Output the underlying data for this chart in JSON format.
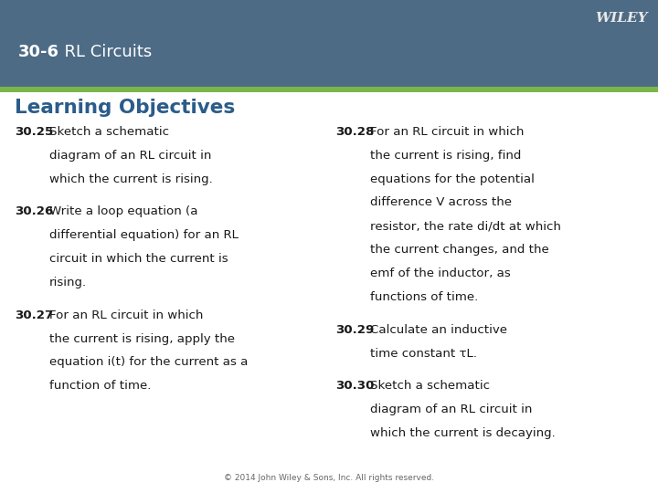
{
  "header_bg_color": "#4d6b85",
  "header_text_color": "#ffffff",
  "header_label": "30-6",
  "header_title": "  RL Circuits",
  "wiley_text": "WILEY",
  "wiley_color": "#e8e8e8",
  "accent_bar_color": "#7ab648",
  "body_bg_color": "#ffffff",
  "section_title": "Learning Objectives",
  "section_title_color": "#2b5c8a",
  "footer_text": "© 2014 John Wiley & Sons, Inc. All rights reserved.",
  "footer_color": "#666666",
  "text_color": "#1a1a1a",
  "left_items": [
    {
      "num": "30.25",
      "lines": [
        "Sketch a schematic",
        "diagram of an RL circuit in",
        "which the current is rising."
      ]
    },
    {
      "num": "30.26",
      "lines": [
        "Write a loop equation (a",
        "differential equation) for an RL",
        "circuit in which the current is",
        "rising."
      ]
    },
    {
      "num": "30.27",
      "lines": [
        "For an RL circuit in which",
        "the current is rising, apply the",
        "equation i(t) for the current as a",
        "function of time."
      ]
    }
  ],
  "right_items": [
    {
      "num": "30.28",
      "lines": [
        "For an RL circuit in which",
        "the current is rising, find",
        "equations for the potential",
        "difference V across the",
        "resistor, the rate di/dt at which",
        "the current changes, and the",
        "emf of the inductor, as",
        "functions of time."
      ]
    },
    {
      "num": "30.29",
      "lines": [
        "Calculate an inductive",
        "time constant τL."
      ]
    },
    {
      "num": "30.30",
      "lines": [
        "Sketch a schematic",
        "diagram of an RL circuit in",
        "which the current is decaying."
      ]
    }
  ],
  "italic_words": {
    "30.27": [
      "i(t)"
    ],
    "30.28": [
      "V",
      "di/dt",
      "emf"
    ]
  }
}
